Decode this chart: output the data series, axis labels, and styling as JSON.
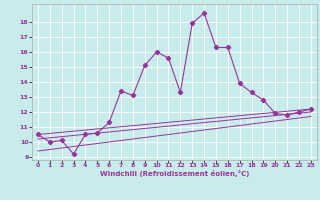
{
  "xlabel": "Windchill (Refroidissement éolien,°C)",
  "bg_color": "#c8ecec",
  "line_color": "#993399",
  "xlim": [
    -0.5,
    23.5
  ],
  "ylim": [
    8.8,
    19.2
  ],
  "xticks": [
    0,
    1,
    2,
    3,
    4,
    5,
    6,
    7,
    8,
    9,
    10,
    11,
    12,
    13,
    14,
    15,
    16,
    17,
    18,
    19,
    20,
    21,
    22,
    23
  ],
  "yticks": [
    9,
    10,
    11,
    12,
    13,
    14,
    15,
    16,
    17,
    18
  ],
  "grid_color": "#ffffff",
  "series1_x": [
    0,
    1,
    2,
    3,
    4,
    5,
    6,
    7,
    8,
    9,
    10,
    11,
    12,
    13,
    14,
    15,
    16,
    17,
    18,
    19,
    20,
    21,
    22,
    23
  ],
  "series1_y": [
    10.5,
    10.0,
    10.1,
    9.2,
    10.5,
    10.6,
    11.3,
    13.4,
    13.1,
    15.1,
    16.0,
    15.6,
    13.3,
    17.9,
    18.6,
    16.3,
    16.3,
    13.9,
    13.3,
    12.8,
    11.9,
    11.8,
    12.0,
    12.2
  ],
  "line2_x": [
    0,
    23
  ],
  "line2_y": [
    10.5,
    12.2
  ],
  "line3_x": [
    0,
    23
  ],
  "line3_y": [
    10.2,
    12.0
  ],
  "line4_x": [
    0,
    23
  ],
  "line4_y": [
    9.4,
    11.7
  ]
}
